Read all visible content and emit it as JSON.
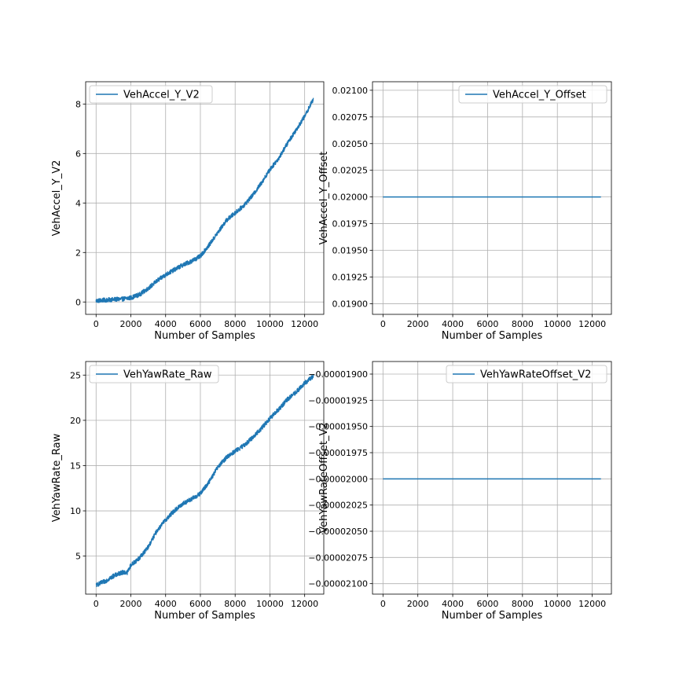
{
  "colors": {
    "line": "#1f77b4",
    "grid": "#b0b0b0",
    "legend_border": "#cccccc"
  },
  "chart_data": [
    {
      "type": "line",
      "position": "top-left",
      "xlabel": "Number of Samples",
      "ylabel": "VehAccel_Y_V2",
      "xlim": [
        -600,
        13100
      ],
      "ylim": [
        -0.5,
        8.9
      ],
      "x_ticks": [
        0,
        2000,
        4000,
        6000,
        8000,
        10000,
        12000
      ],
      "y_ticks": [
        0,
        2,
        4,
        6,
        8
      ],
      "y_tick_labels": [
        "0",
        "2",
        "4",
        "6",
        "8"
      ],
      "grid": true,
      "legend_placement": "upper-left",
      "series": [
        {
          "name": "VehAccel_Y_V2",
          "noise_band": 0.09,
          "x": [
            0,
            1000,
            1500,
            2000,
            2500,
            3000,
            3500,
            4000,
            4500,
            5000,
            5500,
            6000,
            6500,
            7000,
            7500,
            8000,
            8500,
            9000,
            9500,
            10000,
            10500,
            11000,
            11500,
            12000,
            12500
          ],
          "y": [
            0.05,
            0.1,
            0.12,
            0.17,
            0.3,
            0.55,
            0.85,
            1.1,
            1.3,
            1.5,
            1.65,
            1.85,
            2.3,
            2.8,
            3.3,
            3.6,
            3.9,
            4.3,
            4.8,
            5.35,
            5.8,
            6.4,
            6.95,
            7.5,
            8.2
          ]
        }
      ]
    },
    {
      "type": "line",
      "position": "top-right",
      "xlabel": "Number of Samples",
      "ylabel": "VehAccel_Y_Offset",
      "xlim": [
        -600,
        13100
      ],
      "ylim": [
        0.0189,
        0.02108
      ],
      "x_ticks": [
        0,
        2000,
        4000,
        6000,
        8000,
        10000,
        12000
      ],
      "y_ticks": [
        0.019,
        0.01925,
        0.0195,
        0.01975,
        0.02,
        0.02025,
        0.0205,
        0.02075,
        0.021
      ],
      "y_tick_labels": [
        "0.01900",
        "0.01925",
        "0.01950",
        "0.01975",
        "0.02000",
        "0.02025",
        "0.02050",
        "0.02075",
        "0.02100"
      ],
      "grid": true,
      "legend_placement": "upper-right",
      "series": [
        {
          "name": "VehAccel_Y_Offset",
          "noise_band": 0,
          "x": [
            0,
            12500
          ],
          "y": [
            0.02,
            0.02
          ]
        }
      ]
    },
    {
      "type": "line",
      "position": "bottom-left",
      "xlabel": "Number of Samples",
      "ylabel": "VehYawRate_Raw",
      "xlim": [
        -600,
        13100
      ],
      "ylim": [
        0.8,
        26.5
      ],
      "x_ticks": [
        0,
        2000,
        4000,
        6000,
        8000,
        10000,
        12000
      ],
      "y_ticks": [
        5,
        10,
        15,
        20,
        25
      ],
      "y_tick_labels": [
        "5",
        "10",
        "15",
        "20",
        "25"
      ],
      "grid": true,
      "legend_placement": "upper-left",
      "series": [
        {
          "name": "VehYawRate_Raw",
          "noise_band": 0.25,
          "x": [
            0,
            500,
            1000,
            1500,
            1800,
            2000,
            2500,
            3000,
            3500,
            4000,
            4500,
            5000,
            5500,
            6000,
            6500,
            7000,
            7500,
            8000,
            8500,
            9000,
            9500,
            10000,
            10500,
            11000,
            11500,
            12000,
            12500
          ],
          "y": [
            1.8,
            2.2,
            2.8,
            3.2,
            3.2,
            4.0,
            4.8,
            6.0,
            7.8,
            9.0,
            10.0,
            10.8,
            11.3,
            11.9,
            13.2,
            14.8,
            15.9,
            16.6,
            17.2,
            18.1,
            19.1,
            20.2,
            21.2,
            22.3,
            23.1,
            24.1,
            24.9
          ]
        }
      ]
    },
    {
      "type": "line",
      "position": "bottom-right",
      "xlabel": "Number of Samples",
      "ylabel": "VehYawRateOffset_V2",
      "xlim": [
        -600,
        13100
      ],
      "ylim": [
        -2.11e-05,
        -1.888e-05
      ],
      "x_ticks": [
        0,
        2000,
        4000,
        6000,
        8000,
        10000,
        12000
      ],
      "y_ticks": [
        -2.1e-05,
        -2.075e-05,
        -2.05e-05,
        -2.025e-05,
        -2e-05,
        -1.975e-05,
        -1.95e-05,
        -1.925e-05,
        -1.9e-05
      ],
      "y_tick_labels": [
        "−0.00002100",
        "−0.00002075",
        "−0.00002050",
        "−0.00002025",
        "−0.00002000",
        "−0.00001975",
        "−0.00001950",
        "−0.00001925",
        "−0.00001900"
      ],
      "grid": true,
      "legend_placement": "upper-right",
      "series": [
        {
          "name": "VehYawRateOffset_V2",
          "noise_band": 0,
          "x": [
            0,
            12500
          ],
          "y": [
            -2e-05,
            -2e-05
          ]
        }
      ]
    }
  ]
}
